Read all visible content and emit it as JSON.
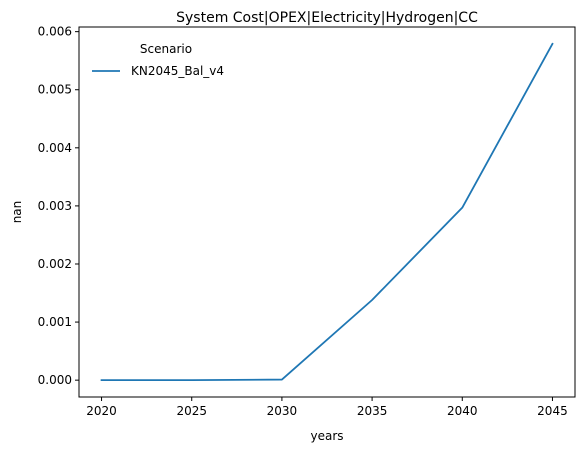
{
  "chart_data": {
    "type": "line",
    "title": "System Cost|OPEX|Electricity|Hydrogen|CC",
    "xlabel": "years",
    "ylabel": "nan",
    "x": [
      2020,
      2025,
      2030,
      2035,
      2040,
      2045
    ],
    "xticks": [
      "2020",
      "2025",
      "2030",
      "2035",
      "2040",
      "2045"
    ],
    "yticks": [
      "0.000",
      "0.001",
      "0.002",
      "0.003",
      "0.004",
      "0.005",
      "0.006"
    ],
    "xlim": [
      2018.75,
      2046.25
    ],
    "ylim": [
      -0.00029,
      0.00608
    ],
    "grid": false,
    "legend": {
      "title": "Scenario",
      "placement": "upper-left"
    },
    "series": [
      {
        "name": "KN2045_Bal_v4",
        "color": "#1f77b4",
        "values": [
          0.0,
          0.0,
          1e-05,
          0.00138,
          0.00297,
          0.00579
        ]
      }
    ]
  }
}
